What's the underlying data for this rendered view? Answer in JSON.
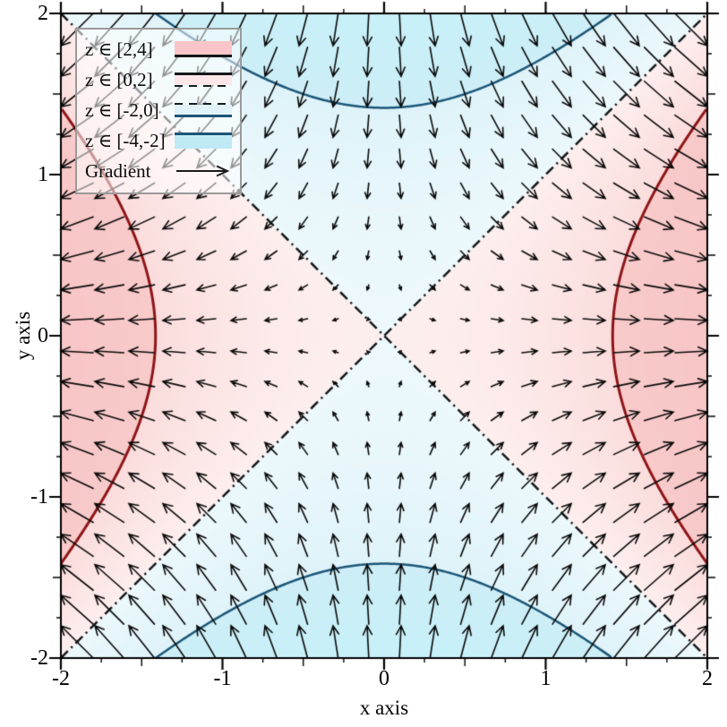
{
  "figure": {
    "background": "#ffffff",
    "frame_color": "#000000"
  },
  "axes": {
    "x_label": "x axis",
    "y_label": "y axis",
    "tick_values": [
      -2,
      -1,
      0,
      1,
      2
    ],
    "tick_labels": [
      "-2",
      "-1",
      "0",
      "1",
      "2"
    ],
    "minor_tick_step": 0.25
  },
  "legend": {
    "items": [
      {
        "label": "z ∈ [2,4]",
        "fill": "#f9c5c9"
      },
      {
        "label": "z ∈ [0,2]",
        "fill": "#fce6e8"
      },
      {
        "label": "z ∈ [-2,0]",
        "fill": "#e1f3f8"
      },
      {
        "label": "z ∈ [-4,-2]",
        "fill": "#bfe9f4"
      },
      {
        "label": "Gradient"
      }
    ]
  },
  "chart_data": {
    "type": "contour_quiver",
    "function": "z = x^2 - y^2",
    "gradient": "(2x, -2y)",
    "title": "",
    "xlabel": "x axis",
    "ylabel": "y axis",
    "xlim": [
      -2,
      2
    ],
    "ylim": [
      -2,
      2
    ],
    "zlim": [
      -4,
      4
    ],
    "grid": false,
    "legend_position": "top-left",
    "bands": [
      {
        "range": [
          2,
          4
        ],
        "label": "z ∈ [2,4]",
        "c0": "#f8caca",
        "c1": "#f8c5c5"
      },
      {
        "range": [
          0,
          2
        ],
        "label": "z ∈ [0,2]",
        "c0": "#fdeeee",
        "c1": "#fbdcdc"
      },
      {
        "range": [
          -2,
          0
        ],
        "label": "z ∈ [-2,0]",
        "c0": "#def3f9",
        "c1": "#ecf8fb"
      },
      {
        "range": [
          -4,
          -2
        ],
        "label": "z ∈ [-4,-2]",
        "c0": "#c7f0f8",
        "c1": "#cdeef7"
      }
    ],
    "contour_lines": [
      {
        "level": 2,
        "color": "#8e1518",
        "style": "solid",
        "width": 3
      },
      {
        "level": 0,
        "color": "#14181c",
        "style": "dashdot",
        "width": 2.5
      },
      {
        "level": -2,
        "color": "#1b5577",
        "style": "solid",
        "width": 2.5
      }
    ],
    "quiver": {
      "label": "Gradient",
      "x_start": -1.9,
      "y_start": -1.9,
      "step": 0.2,
      "count": 20,
      "pixels_per_unit_vector": 9.5,
      "pivot": "mid",
      "color": "#0a0a0a"
    }
  }
}
